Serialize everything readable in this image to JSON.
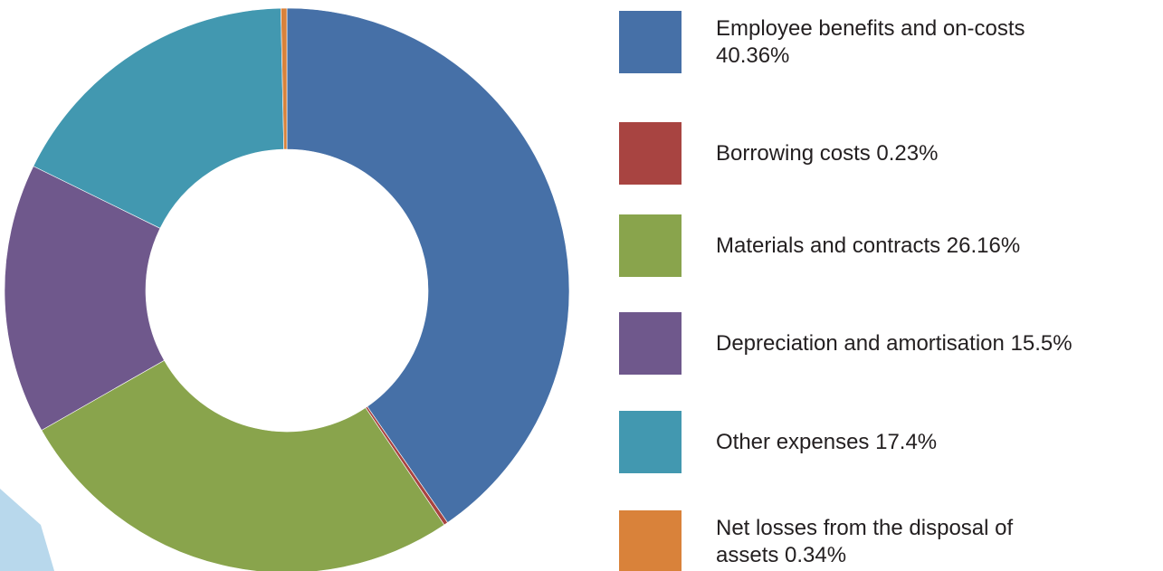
{
  "chart_data": {
    "type": "donut",
    "start": "top",
    "direction": "clockwise",
    "legend_position": "right",
    "series": [
      {
        "label": "Employee benefits and on-costs\n40.36%",
        "value": 40.36,
        "color": "#4670a7"
      },
      {
        "label": "Borrowing costs 0.23%",
        "value": 0.23,
        "color": "#a84441"
      },
      {
        "label": "Materials and contracts 26.16%",
        "value": 26.16,
        "color": "#89a44c"
      },
      {
        "label": "Depreciation and amortisation 15.5%",
        "value": 15.5,
        "color": "#6f588c"
      },
      {
        "label": "Other expenses 17.4%",
        "value": 17.4,
        "color": "#4298b0"
      },
      {
        "label": "Net losses from the disposal of\nassets 0.34%",
        "value": 0.34,
        "color": "#d9823a"
      }
    ]
  },
  "decoration": {
    "corner_shape_color": "#b8d8ec"
  }
}
